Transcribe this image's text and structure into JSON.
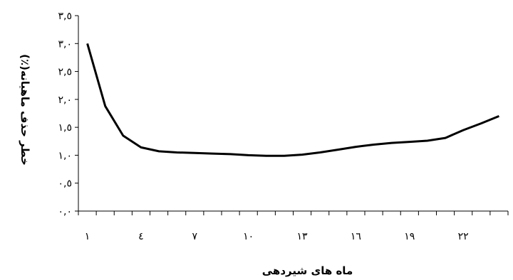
{
  "chart_data": {
    "type": "line",
    "title": "",
    "xlabel": "ماه های شیردهی",
    "ylabel": "خطر حذف ماهیانه(٪)",
    "x": [
      1,
      2,
      3,
      4,
      5,
      6,
      7,
      8,
      9,
      10,
      11,
      12,
      13,
      14,
      15,
      16,
      17,
      18,
      19,
      20,
      21,
      22,
      23,
      24
    ],
    "series": [
      {
        "values": [
          3.0,
          1.88,
          1.35,
          1.14,
          1.07,
          1.05,
          1.04,
          1.03,
          1.02,
          1.0,
          0.99,
          0.99,
          1.01,
          1.05,
          1.1,
          1.15,
          1.19,
          1.22,
          1.24,
          1.26,
          1.31,
          1.45,
          1.57,
          1.7
        ]
      }
    ],
    "ylim": [
      0,
      3.5
    ],
    "xlim": [
      0.5,
      24.5
    ],
    "y_ticks": [
      0,
      0.5,
      1.0,
      1.5,
      2.0,
      2.5,
      3.0,
      3.5
    ],
    "y_tick_labels": [
      "٠,٠",
      "٠,٥",
      "١,٠",
      "١,٥",
      "٢,٠",
      "٢,٥",
      "٣,٠",
      "٣,٥"
    ],
    "x_ticks": [
      1,
      4,
      7,
      10,
      13,
      16,
      19,
      22
    ],
    "x_tick_labels": [
      "١",
      "٤",
      "٧",
      "١٠",
      "١٣",
      "١٦",
      "١٩",
      "٢٢"
    ],
    "grid": false,
    "legend": "none",
    "colors": {
      "line": "#000000",
      "axis": "#000000"
    }
  }
}
